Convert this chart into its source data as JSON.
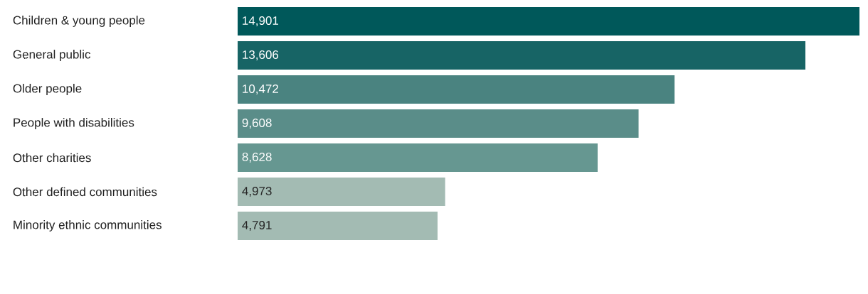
{
  "chart_data": {
    "type": "bar",
    "orientation": "horizontal",
    "categories": [
      "Children & young people",
      "General public",
      "Older people",
      "People with disabilities",
      "Other charities",
      "Other defined communities",
      "Minority ethnic communities"
    ],
    "values": [
      14901,
      13606,
      10472,
      9608,
      8628,
      4973,
      4791
    ],
    "value_labels": [
      "14,901",
      "13,606",
      "10,472",
      "9,608",
      "8,628",
      "4,973",
      "4,791"
    ],
    "colors": [
      "#00585a",
      "#176465",
      "#4a8380",
      "#5a8d89",
      "#669791",
      "#a3bbb3",
      "#a3bbb3"
    ]
  }
}
